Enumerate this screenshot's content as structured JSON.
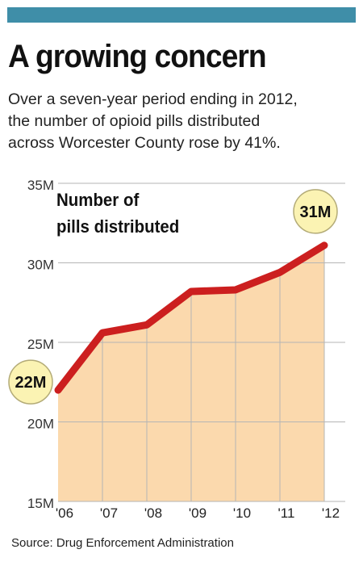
{
  "header": {
    "title": "A growing concern",
    "dek_lines": [
      "Over a seven-year period ending in 2012,",
      "the number of opioid pills distributed",
      "across Worcester County rose by 41%."
    ]
  },
  "source": "Source: Drug Enforcement Administration",
  "chart_data": {
    "type": "area",
    "title": "Number of pills distributed",
    "title_lines": [
      "Number of",
      "pills distributed"
    ],
    "categories": [
      "'06",
      "'07",
      "'08",
      "'09",
      "'10",
      "'11",
      "'12"
    ],
    "values": [
      22.0,
      25.6,
      26.1,
      28.2,
      28.3,
      29.4,
      31.1
    ],
    "unit": "M",
    "yticks": [
      15,
      20,
      25,
      30,
      35
    ],
    "ytick_labels": [
      "15M",
      "20M",
      "25M",
      "30M",
      "35M"
    ],
    "ylim": [
      15,
      35
    ],
    "grid": true,
    "annotations": [
      {
        "category": "'06",
        "text": "22M"
      },
      {
        "category": "'12",
        "text": "31M"
      }
    ],
    "colors": {
      "line": "#cc1f1f",
      "fill": "#fbd9ad",
      "grid": "#b5b5b5",
      "callout": "#fbf3b3",
      "header_bar": "#3f8ea8"
    }
  }
}
